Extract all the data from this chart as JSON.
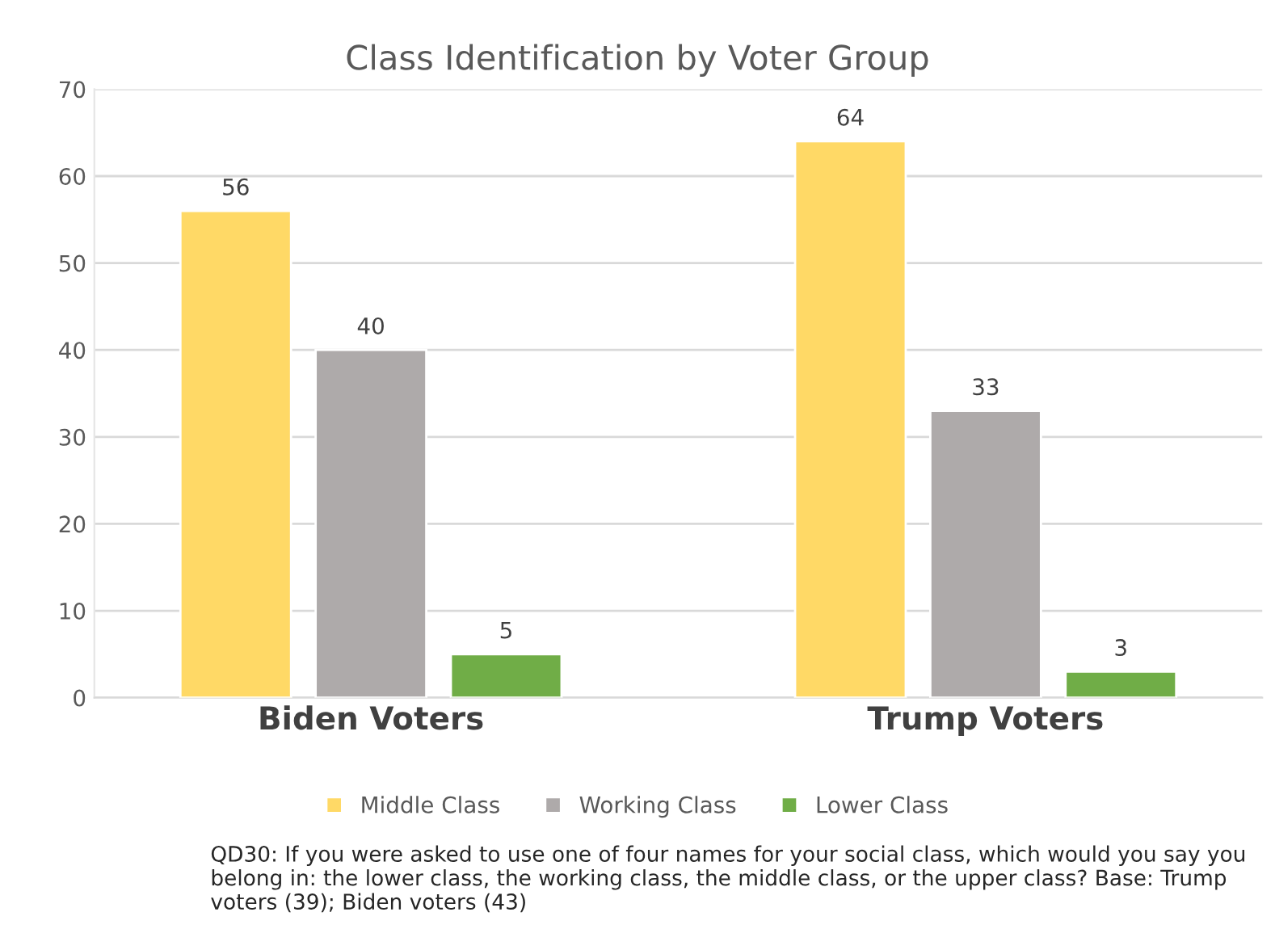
{
  "chart_data": {
    "type": "bar",
    "title": "Class Identification by Voter Group",
    "categories": [
      "Biden Voters",
      "Trump Voters"
    ],
    "series": [
      {
        "name": "Middle Class",
        "color": "#ffd966",
        "values": [
          56,
          64
        ]
      },
      {
        "name": "Working Class",
        "color": "#aeaaaa",
        "values": [
          40,
          33
        ]
      },
      {
        "name": "Lower Class",
        "color": "#70ad47",
        "values": [
          5,
          3
        ]
      }
    ],
    "ylim": [
      0,
      70
    ],
    "yticks": [
      0,
      10,
      20,
      30,
      40,
      50,
      60,
      70
    ],
    "grid": "y",
    "legend": "bottom",
    "data_labels": true,
    "annotations": [
      "QD30: If you were asked to use one of four names for your social class, which would you say you belong in: the lower class, the working class, the middle class, or the upper class? Base: Trump voters (39); Biden voters (43)"
    ]
  }
}
